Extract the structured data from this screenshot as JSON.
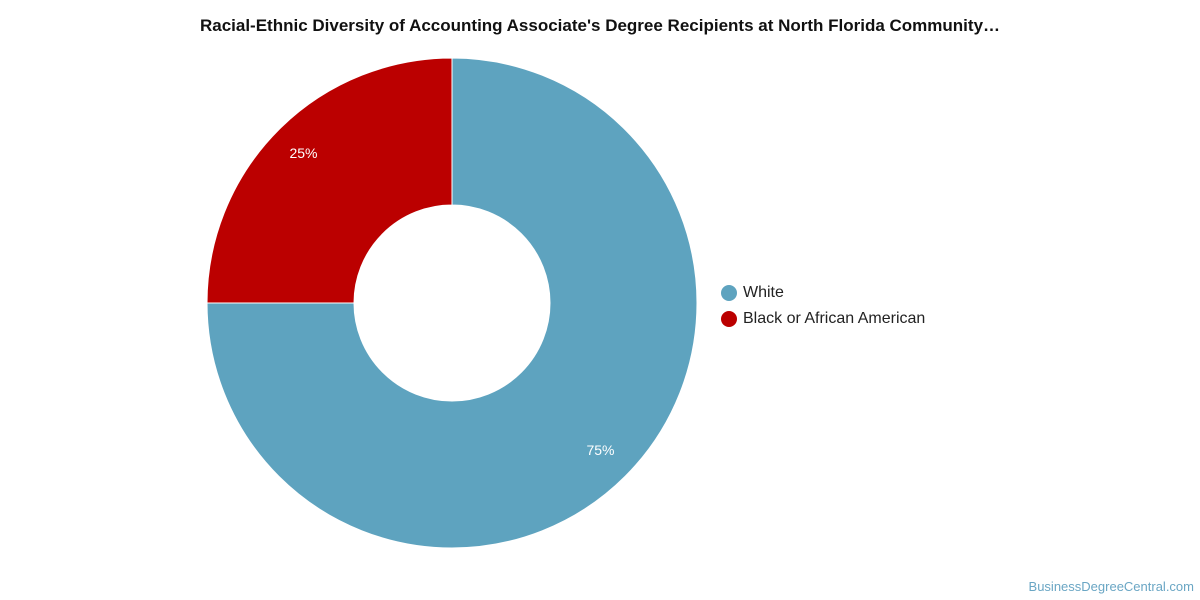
{
  "chart_data": {
    "type": "pie",
    "title": "Racial-Ethnic Diversity of Accounting Associate's Degree Recipients at North Florida Community…",
    "categories": [
      "White",
      "Black or African American"
    ],
    "values": [
      75,
      25
    ],
    "labels": [
      "75%",
      "25%"
    ],
    "colors": [
      "#5ea3bf",
      "#bb0000"
    ],
    "donut": true,
    "legend_position": "right"
  },
  "credit": "BusinessDegreeCentral.com"
}
